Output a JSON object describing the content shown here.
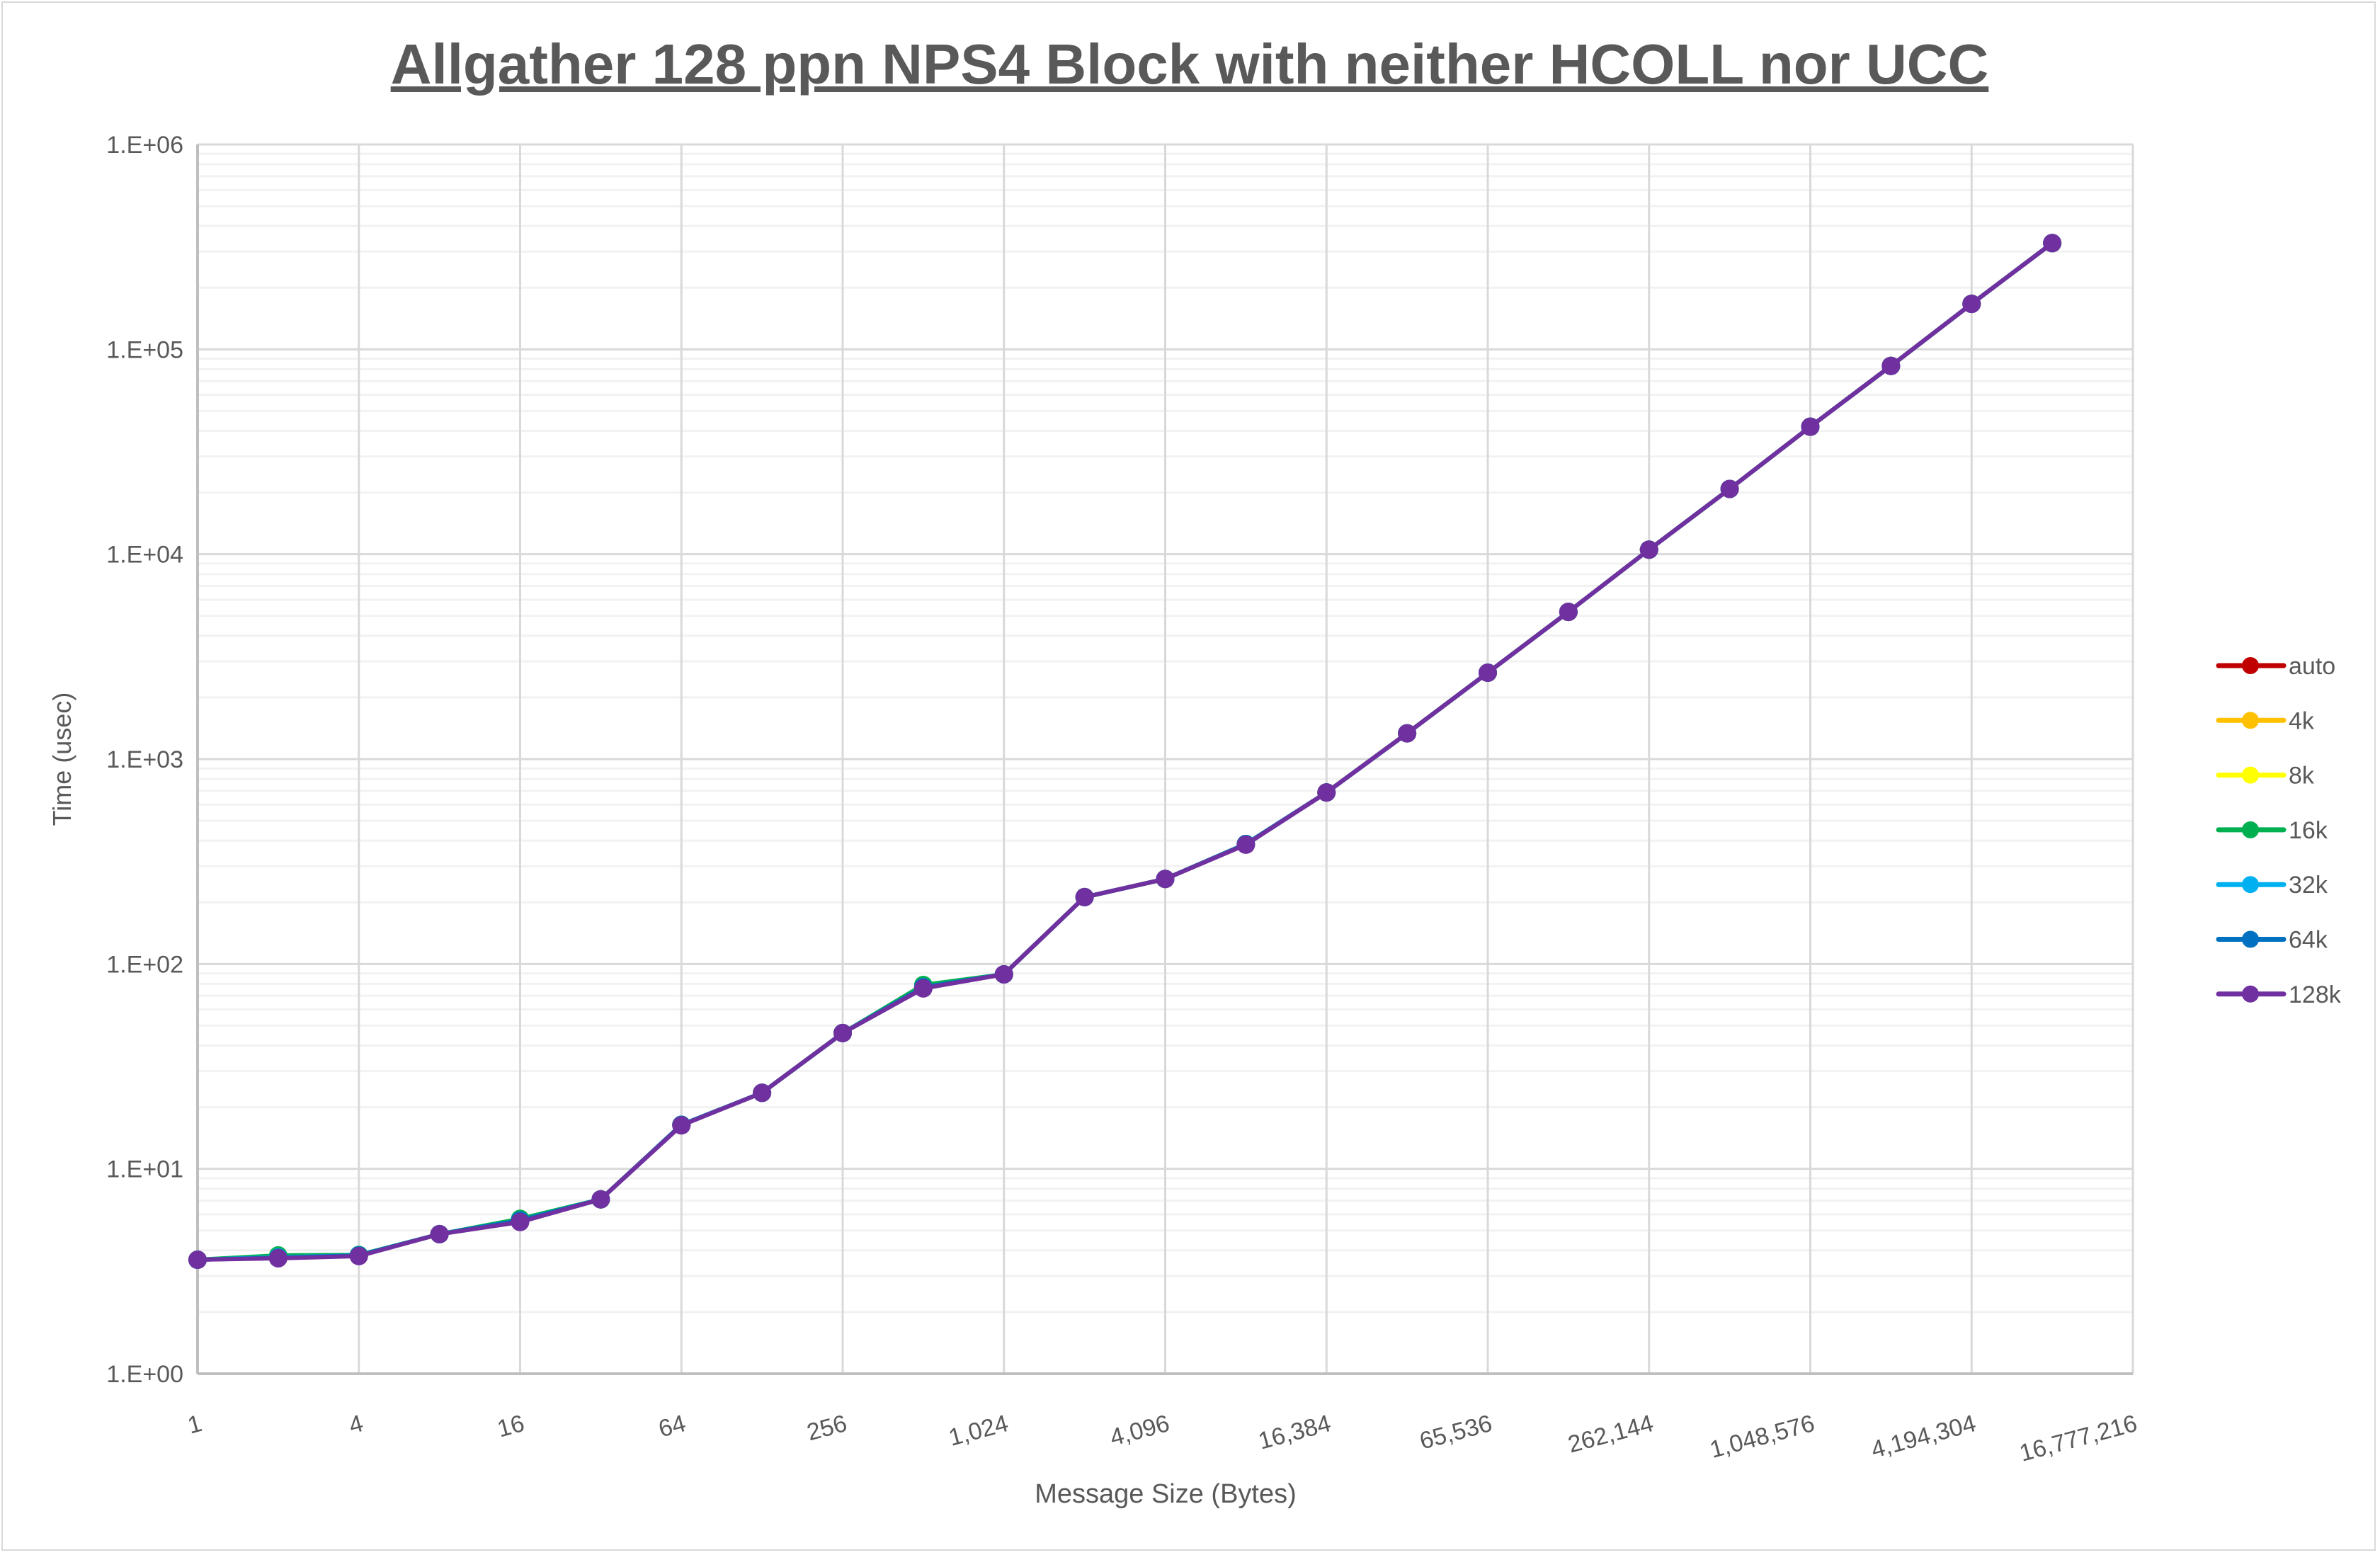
{
  "chart_data": {
    "type": "line",
    "title": "Allgather 128 ppn NPS4 Block with neither HCOLL nor UCC",
    "xlabel": "Message Size (Bytes)",
    "ylabel": "Time (usec)",
    "x_scale": "log2",
    "y_scale": "log10",
    "xlim": [
      1,
      16777216
    ],
    "ylim": [
      1,
      1000000
    ],
    "x_ticks": [
      "1",
      "4",
      "16",
      "64",
      "256",
      "1,024",
      "4,096",
      "16,384",
      "65,536",
      "262,144",
      "1,048,576",
      "4,194,304",
      "16,777,216"
    ],
    "y_ticks": [
      "1.E+00",
      "1.E+01",
      "1.E+02",
      "1.E+03",
      "1.E+04",
      "1.E+05",
      "1.E+06"
    ],
    "grid": true,
    "legend_position": "right",
    "x": [
      1,
      2,
      4,
      8,
      16,
      32,
      64,
      128,
      256,
      512,
      1024,
      2048,
      4096,
      8192,
      16384,
      32768,
      65536,
      131072,
      262144,
      524288,
      1048576,
      2097152,
      4194304,
      8388608
    ],
    "series": [
      {
        "name": "auto",
        "color": "#c00000",
        "values": [
          3.6,
          3.7,
          3.78,
          4.8,
          5.6,
          7.1,
          16.4,
          23.5,
          46,
          77,
          89,
          212,
          260,
          385,
          687,
          1336,
          2640,
          5230,
          10520,
          20830,
          41900,
          83000,
          166700,
          330000
        ]
      },
      {
        "name": "4k",
        "color": "#ffc000",
        "values": [
          3.6,
          3.7,
          3.78,
          4.8,
          5.6,
          7.1,
          16.4,
          23.5,
          46,
          77,
          89,
          212,
          260,
          385,
          687,
          1336,
          2640,
          5230,
          10520,
          20830,
          41900,
          83000,
          166700,
          330000
        ]
      },
      {
        "name": "8k",
        "color": "#ffff00",
        "values": [
          3.6,
          3.7,
          3.78,
          4.8,
          5.6,
          7.1,
          16.4,
          23.5,
          46,
          77,
          89,
          212,
          260,
          385,
          687,
          1336,
          2640,
          5230,
          10520,
          20830,
          41900,
          83000,
          166700,
          330000
        ]
      },
      {
        "name": "16k",
        "color": "#00b050",
        "values": [
          3.6,
          3.78,
          3.8,
          4.8,
          5.7,
          7.1,
          16.4,
          23.5,
          46,
          79,
          89,
          212,
          260,
          385,
          687,
          1336,
          2640,
          5230,
          10520,
          20830,
          41900,
          83000,
          166700,
          330000
        ]
      },
      {
        "name": "32k",
        "color": "#00b0f0",
        "values": [
          3.6,
          3.7,
          3.78,
          4.8,
          5.6,
          7.1,
          16.4,
          23.5,
          46,
          77,
          89,
          212,
          260,
          385,
          687,
          1336,
          2640,
          5230,
          10520,
          20830,
          41900,
          83000,
          166700,
          330000
        ]
      },
      {
        "name": "64k",
        "color": "#0070c0",
        "values": [
          3.6,
          3.68,
          3.78,
          4.8,
          5.6,
          7.1,
          16.4,
          23.5,
          46,
          77,
          89,
          212,
          260,
          385,
          687,
          1336,
          2640,
          5230,
          10520,
          20830,
          41900,
          83000,
          166700,
          330000
        ]
      },
      {
        "name": "128k",
        "color": "#7030a0",
        "values": [
          3.6,
          3.66,
          3.75,
          4.8,
          5.5,
          7.1,
          16.3,
          23.5,
          46,
          76,
          89,
          212,
          260,
          382,
          687,
          1336,
          2640,
          5230,
          10520,
          20830,
          41900,
          83000,
          166700,
          330000
        ]
      }
    ]
  }
}
